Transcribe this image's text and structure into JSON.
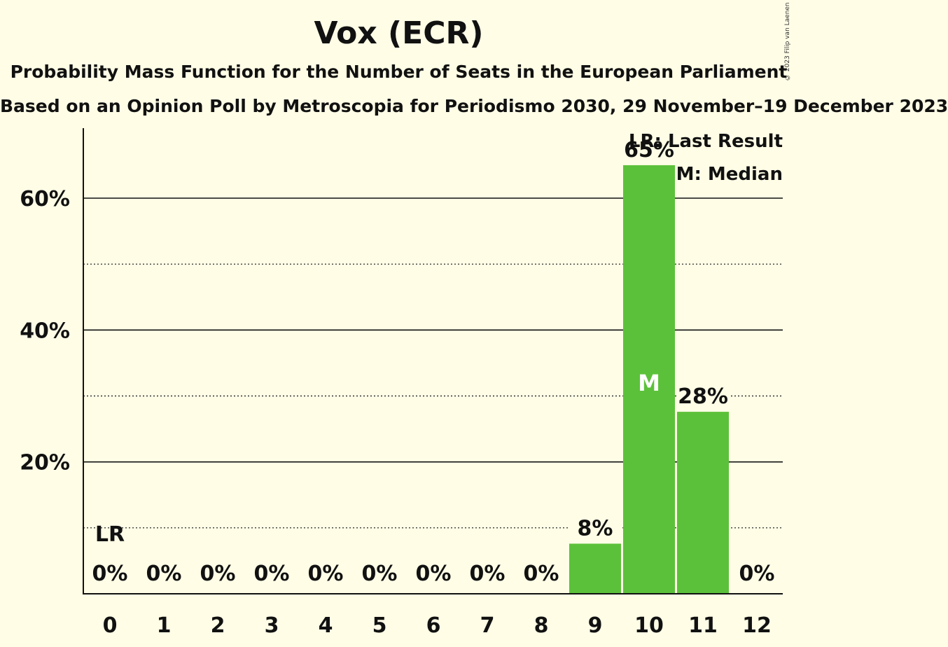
{
  "header": {
    "title": "Vox (ECR)",
    "subtitle": "Probability Mass Function for the Number of Seats in the European Parliament",
    "source_line": "Based on an Opinion Poll by Metroscopia for Periodismo 2030, 29 November–19 December 2023",
    "copyright": "© 2023 Filip van Laenen"
  },
  "legend": {
    "last_result": "LR: Last Result",
    "median": "M: Median"
  },
  "chart_data": {
    "type": "bar",
    "title": "Vox (ECR)",
    "xlabel": "",
    "ylabel": "",
    "categories": [
      "0",
      "1",
      "2",
      "3",
      "4",
      "5",
      "6",
      "7",
      "8",
      "9",
      "10",
      "11",
      "12"
    ],
    "values": [
      0,
      0,
      0,
      0,
      0,
      0,
      0,
      0,
      0,
      7.6,
      65,
      27.6,
      0
    ],
    "value_labels": [
      "0%",
      "0%",
      "0%",
      "0%",
      "0%",
      "0%",
      "0%",
      "0%",
      "0%",
      "8%",
      "65%",
      "28%",
      "0%"
    ],
    "ylim": [
      0,
      70
    ],
    "yticks": [
      20,
      40,
      60
    ],
    "ytick_labels": [
      "20%",
      "40%",
      "60%"
    ],
    "minor_gridlines": [
      10,
      30,
      50
    ],
    "last_result_seat": "0",
    "last_result_marker": "LR",
    "median_seat": "10",
    "median_marker": "M",
    "bar_color": "#5CC13A",
    "grid": true,
    "legend_position": "top-right"
  }
}
